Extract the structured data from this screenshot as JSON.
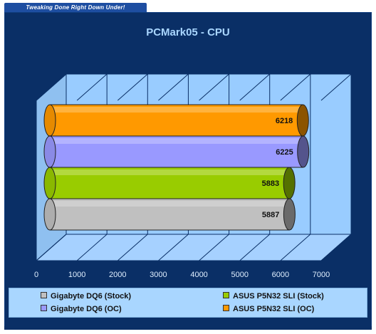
{
  "header": {
    "tagline": "Tweaking Done Right Down Under!"
  },
  "chart_data": {
    "type": "bar",
    "orientation": "horizontal",
    "title": "PCMark05 - CPU",
    "xlabel": "",
    "ylabel": "",
    "xlim": [
      0,
      7000
    ],
    "ticks": [
      "0",
      "1000",
      "2000",
      "3000",
      "4000",
      "5000",
      "6000",
      "7000"
    ],
    "grid": true,
    "legend_position": "bottom",
    "series": [
      {
        "name": "Gigabyte DQ6 (Stock)",
        "value": 5887,
        "color": "#c0c0c0"
      },
      {
        "name": "ASUS P5N32 SLI (Stock)",
        "value": 5883,
        "color": "#99cc00"
      },
      {
        "name": "Gigabyte DQ6 (OC)",
        "value": 6225,
        "color": "#9999ff"
      },
      {
        "name": "ASUS P5N32 SLI (OC)",
        "value": 6218,
        "color": "#ff9900"
      }
    ]
  },
  "colors": {
    "background": "#0a2f66",
    "plot_area": "#99ccff",
    "title": "#a9d6ff"
  }
}
